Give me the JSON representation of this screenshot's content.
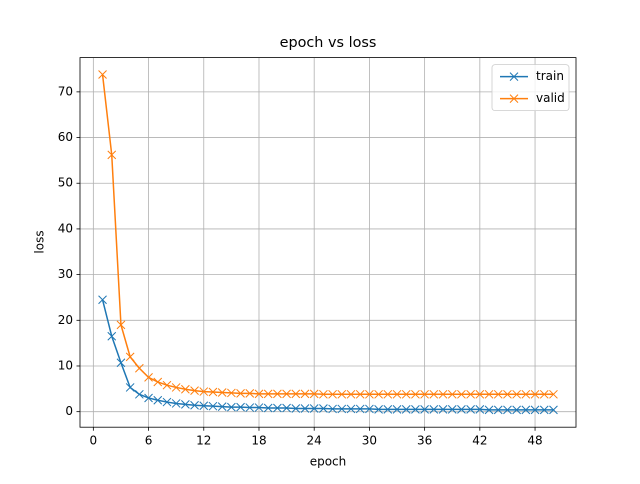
{
  "chart_data": {
    "type": "line",
    "title": "epoch vs loss",
    "x_label": "epoch",
    "y_label": "loss",
    "x": [
      1,
      2,
      3,
      4,
      5,
      6,
      7,
      8,
      9,
      10,
      11,
      12,
      13,
      14,
      15,
      16,
      17,
      18,
      19,
      20,
      21,
      22,
      23,
      24,
      25,
      26,
      27,
      28,
      29,
      30,
      31,
      32,
      33,
      34,
      35,
      36,
      37,
      38,
      39,
      40,
      41,
      42,
      43,
      44,
      45,
      46,
      47,
      48,
      49,
      50
    ],
    "series": [
      {
        "name": "train",
        "color": "#1f77b4",
        "values": [
          24.5,
          16.5,
          10.7,
          5.3,
          3.8,
          3.0,
          2.5,
          2.1,
          1.8,
          1.6,
          1.4,
          1.3,
          1.2,
          1.1,
          1.0,
          1.0,
          0.9,
          0.9,
          0.8,
          0.8,
          0.8,
          0.7,
          0.7,
          0.7,
          0.7,
          0.6,
          0.6,
          0.6,
          0.6,
          0.6,
          0.5,
          0.5,
          0.5,
          0.5,
          0.5,
          0.5,
          0.5,
          0.5,
          0.5,
          0.5,
          0.5,
          0.5,
          0.4,
          0.4,
          0.4,
          0.4,
          0.4,
          0.4,
          0.4,
          0.4
        ]
      },
      {
        "name": "valid",
        "color": "#ff7f0e",
        "values": [
          73.8,
          56.2,
          19.0,
          12.0,
          9.5,
          7.5,
          6.5,
          5.8,
          5.3,
          4.9,
          4.6,
          4.4,
          4.3,
          4.2,
          4.1,
          4.0,
          4.0,
          3.9,
          3.9,
          3.9,
          3.9,
          3.9,
          3.9,
          3.9,
          3.8,
          3.8,
          3.8,
          3.8,
          3.8,
          3.8,
          3.8,
          3.8,
          3.8,
          3.8,
          3.8,
          3.8,
          3.8,
          3.8,
          3.8,
          3.8,
          3.8,
          3.8,
          3.8,
          3.8,
          3.8,
          3.8,
          3.8,
          3.8,
          3.8,
          3.8
        ]
      }
    ],
    "xlim": [
      -1.45,
      52.45
    ],
    "ylim": [
      -3.4,
      77.5
    ],
    "xticks": [
      0,
      6,
      12,
      18,
      24,
      30,
      36,
      42,
      48
    ],
    "yticks": [
      0,
      10,
      20,
      30,
      40,
      50,
      60,
      70
    ],
    "grid": true,
    "legend": "upper right",
    "marker": "x"
  }
}
